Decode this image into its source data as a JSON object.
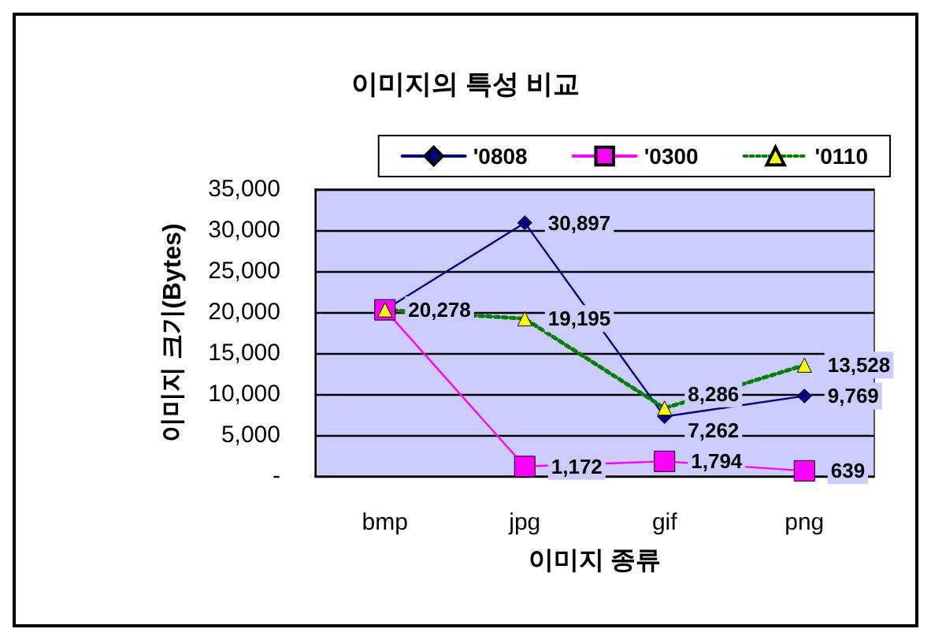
{
  "chart_data": {
    "type": "line",
    "title": "이미지의 특성 비교",
    "xlabel": "이미지 종류",
    "ylabel": "이미지 크기(Bytes)",
    "categories": [
      "bmp",
      "jpg",
      "gif",
      "png"
    ],
    "series": [
      {
        "name": "'0808",
        "color": "#000080",
        "marker": "diamond",
        "line_style": "solid",
        "values": [
          20278,
          30897,
          7262,
          9769
        ],
        "value_labels": [
          "20,278",
          "30,897",
          "7,262",
          "9,769"
        ]
      },
      {
        "name": "'0300",
        "color": "#ff00ff",
        "marker": "square",
        "line_style": "solid",
        "values": [
          20278,
          1172,
          1794,
          639
        ],
        "value_labels": [
          null,
          "1,172",
          "1,794",
          "639"
        ]
      },
      {
        "name": "'0110",
        "color": "#008000",
        "marker": "triangle",
        "line_style": "dotted",
        "values": [
          20278,
          19195,
          8286,
          13528
        ],
        "value_labels": [
          null,
          "19,195",
          "8,286",
          "13,528"
        ]
      }
    ],
    "ylim": [
      0,
      35000
    ],
    "yticks": [
      {
        "value": 0,
        "label": "-"
      },
      {
        "value": 5000,
        "label": "5,000"
      },
      {
        "value": 10000,
        "label": "10,000"
      },
      {
        "value": 15000,
        "label": "15,000"
      },
      {
        "value": 20000,
        "label": "20,000"
      },
      {
        "value": 25000,
        "label": "25,000"
      },
      {
        "value": 30000,
        "label": "30,000"
      },
      {
        "value": 35000,
        "label": "35,000"
      }
    ],
    "grid": "y",
    "legend": "top right"
  }
}
